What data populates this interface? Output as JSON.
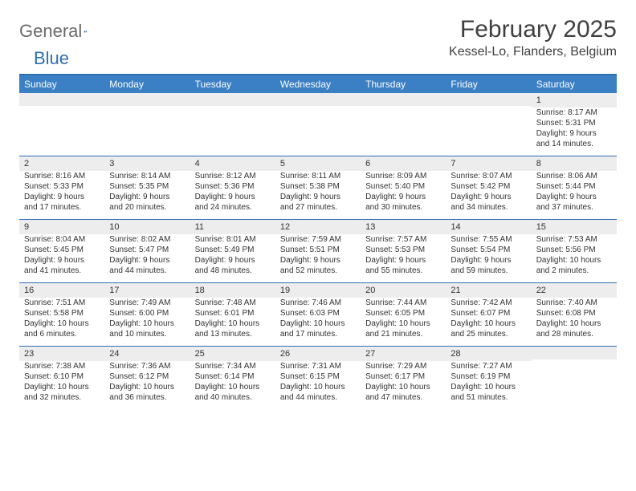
{
  "logo": {
    "word1": "General",
    "word2": "Blue"
  },
  "header": {
    "month_title": "February 2025",
    "location": "Kessel-Lo, Flanders, Belgium"
  },
  "colors": {
    "header_bar": "#3b7fc4",
    "rule": "#2d6fb5",
    "daynum_bg": "#ededed",
    "text": "#333333",
    "logo_gray": "#6a6a6a",
    "logo_blue": "#2d6fb5",
    "bg": "#ffffff"
  },
  "daynames": [
    "Sunday",
    "Monday",
    "Tuesday",
    "Wednesday",
    "Thursday",
    "Friday",
    "Saturday"
  ],
  "weeks": [
    [
      null,
      null,
      null,
      null,
      null,
      null,
      {
        "n": "1",
        "sr": "Sunrise: 8:17 AM",
        "ss": "Sunset: 5:31 PM",
        "d1": "Daylight: 9 hours",
        "d2": "and 14 minutes."
      }
    ],
    [
      {
        "n": "2",
        "sr": "Sunrise: 8:16 AM",
        "ss": "Sunset: 5:33 PM",
        "d1": "Daylight: 9 hours",
        "d2": "and 17 minutes."
      },
      {
        "n": "3",
        "sr": "Sunrise: 8:14 AM",
        "ss": "Sunset: 5:35 PM",
        "d1": "Daylight: 9 hours",
        "d2": "and 20 minutes."
      },
      {
        "n": "4",
        "sr": "Sunrise: 8:12 AM",
        "ss": "Sunset: 5:36 PM",
        "d1": "Daylight: 9 hours",
        "d2": "and 24 minutes."
      },
      {
        "n": "5",
        "sr": "Sunrise: 8:11 AM",
        "ss": "Sunset: 5:38 PM",
        "d1": "Daylight: 9 hours",
        "d2": "and 27 minutes."
      },
      {
        "n": "6",
        "sr": "Sunrise: 8:09 AM",
        "ss": "Sunset: 5:40 PM",
        "d1": "Daylight: 9 hours",
        "d2": "and 30 minutes."
      },
      {
        "n": "7",
        "sr": "Sunrise: 8:07 AM",
        "ss": "Sunset: 5:42 PM",
        "d1": "Daylight: 9 hours",
        "d2": "and 34 minutes."
      },
      {
        "n": "8",
        "sr": "Sunrise: 8:06 AM",
        "ss": "Sunset: 5:44 PM",
        "d1": "Daylight: 9 hours",
        "d2": "and 37 minutes."
      }
    ],
    [
      {
        "n": "9",
        "sr": "Sunrise: 8:04 AM",
        "ss": "Sunset: 5:45 PM",
        "d1": "Daylight: 9 hours",
        "d2": "and 41 minutes."
      },
      {
        "n": "10",
        "sr": "Sunrise: 8:02 AM",
        "ss": "Sunset: 5:47 PM",
        "d1": "Daylight: 9 hours",
        "d2": "and 44 minutes."
      },
      {
        "n": "11",
        "sr": "Sunrise: 8:01 AM",
        "ss": "Sunset: 5:49 PM",
        "d1": "Daylight: 9 hours",
        "d2": "and 48 minutes."
      },
      {
        "n": "12",
        "sr": "Sunrise: 7:59 AM",
        "ss": "Sunset: 5:51 PM",
        "d1": "Daylight: 9 hours",
        "d2": "and 52 minutes."
      },
      {
        "n": "13",
        "sr": "Sunrise: 7:57 AM",
        "ss": "Sunset: 5:53 PM",
        "d1": "Daylight: 9 hours",
        "d2": "and 55 minutes."
      },
      {
        "n": "14",
        "sr": "Sunrise: 7:55 AM",
        "ss": "Sunset: 5:54 PM",
        "d1": "Daylight: 9 hours",
        "d2": "and 59 minutes."
      },
      {
        "n": "15",
        "sr": "Sunrise: 7:53 AM",
        "ss": "Sunset: 5:56 PM",
        "d1": "Daylight: 10 hours",
        "d2": "and 2 minutes."
      }
    ],
    [
      {
        "n": "16",
        "sr": "Sunrise: 7:51 AM",
        "ss": "Sunset: 5:58 PM",
        "d1": "Daylight: 10 hours",
        "d2": "and 6 minutes."
      },
      {
        "n": "17",
        "sr": "Sunrise: 7:49 AM",
        "ss": "Sunset: 6:00 PM",
        "d1": "Daylight: 10 hours",
        "d2": "and 10 minutes."
      },
      {
        "n": "18",
        "sr": "Sunrise: 7:48 AM",
        "ss": "Sunset: 6:01 PM",
        "d1": "Daylight: 10 hours",
        "d2": "and 13 minutes."
      },
      {
        "n": "19",
        "sr": "Sunrise: 7:46 AM",
        "ss": "Sunset: 6:03 PM",
        "d1": "Daylight: 10 hours",
        "d2": "and 17 minutes."
      },
      {
        "n": "20",
        "sr": "Sunrise: 7:44 AM",
        "ss": "Sunset: 6:05 PM",
        "d1": "Daylight: 10 hours",
        "d2": "and 21 minutes."
      },
      {
        "n": "21",
        "sr": "Sunrise: 7:42 AM",
        "ss": "Sunset: 6:07 PM",
        "d1": "Daylight: 10 hours",
        "d2": "and 25 minutes."
      },
      {
        "n": "22",
        "sr": "Sunrise: 7:40 AM",
        "ss": "Sunset: 6:08 PM",
        "d1": "Daylight: 10 hours",
        "d2": "and 28 minutes."
      }
    ],
    [
      {
        "n": "23",
        "sr": "Sunrise: 7:38 AM",
        "ss": "Sunset: 6:10 PM",
        "d1": "Daylight: 10 hours",
        "d2": "and 32 minutes."
      },
      {
        "n": "24",
        "sr": "Sunrise: 7:36 AM",
        "ss": "Sunset: 6:12 PM",
        "d1": "Daylight: 10 hours",
        "d2": "and 36 minutes."
      },
      {
        "n": "25",
        "sr": "Sunrise: 7:34 AM",
        "ss": "Sunset: 6:14 PM",
        "d1": "Daylight: 10 hours",
        "d2": "and 40 minutes."
      },
      {
        "n": "26",
        "sr": "Sunrise: 7:31 AM",
        "ss": "Sunset: 6:15 PM",
        "d1": "Daylight: 10 hours",
        "d2": "and 44 minutes."
      },
      {
        "n": "27",
        "sr": "Sunrise: 7:29 AM",
        "ss": "Sunset: 6:17 PM",
        "d1": "Daylight: 10 hours",
        "d2": "and 47 minutes."
      },
      {
        "n": "28",
        "sr": "Sunrise: 7:27 AM",
        "ss": "Sunset: 6:19 PM",
        "d1": "Daylight: 10 hours",
        "d2": "and 51 minutes."
      },
      null
    ]
  ]
}
